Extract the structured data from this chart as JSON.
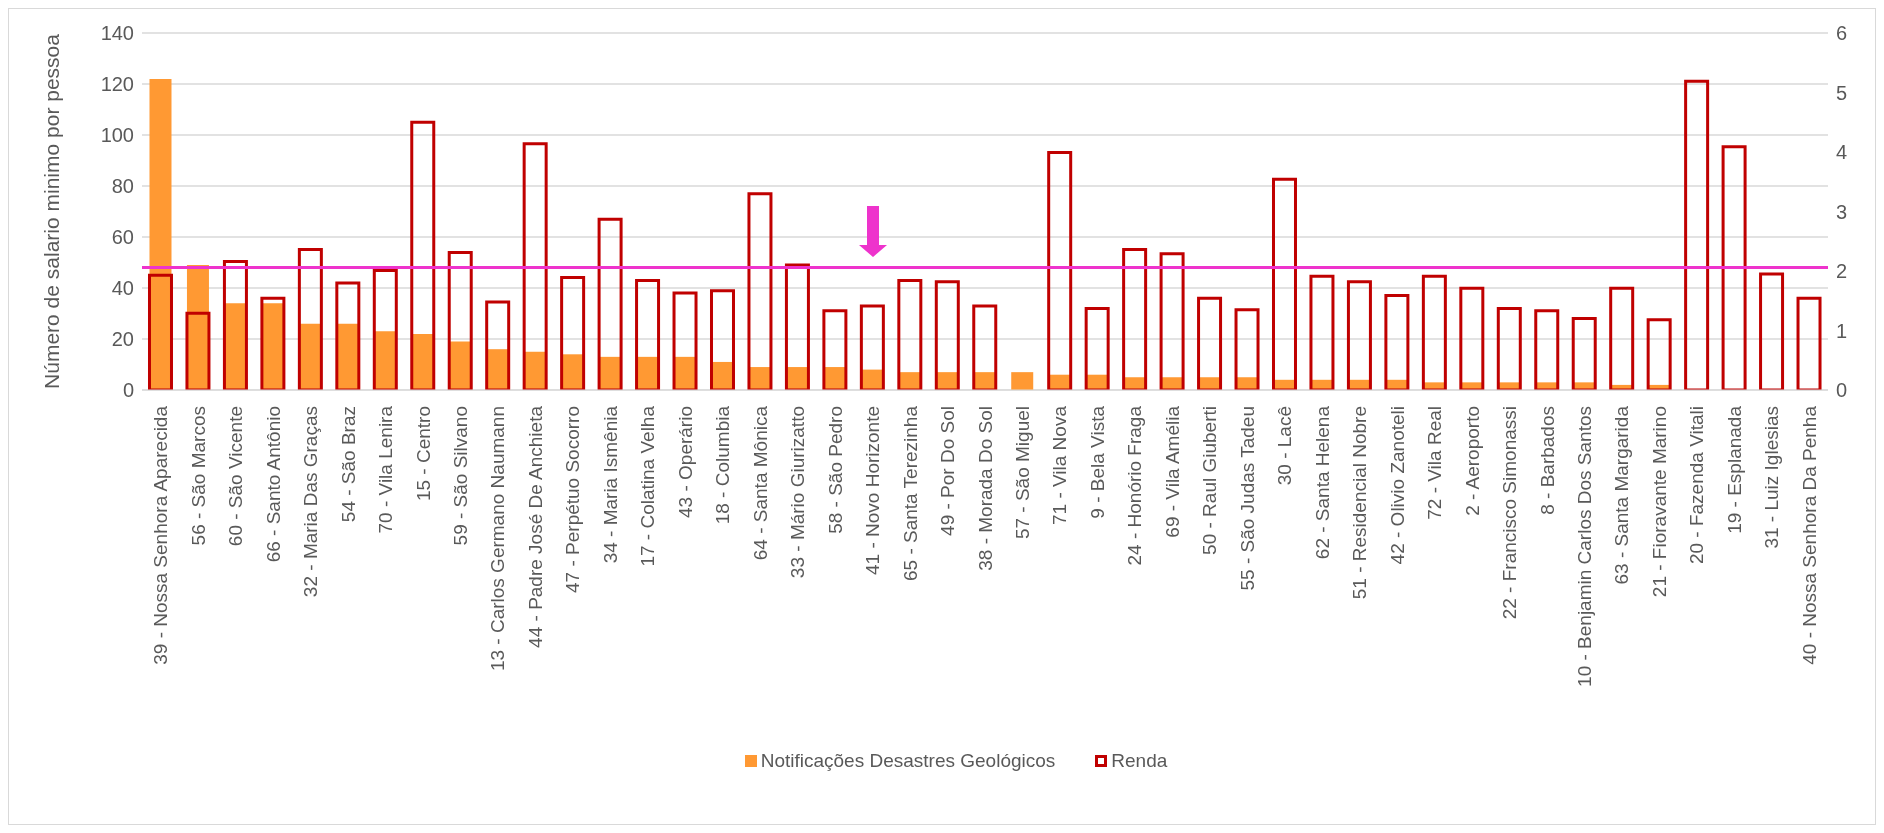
{
  "chart_data": {
    "type": "bar",
    "ylabel": "Número de salario minimo por pessoa",
    "categories": [
      "39 - Nossa Senhora Aparecida",
      "56 - São Marcos",
      "60 - São Vicente",
      "66 - Santo Antônio",
      "32 - Maria Das Graças",
      "54 - São Braz",
      "70 - Vila Lenira",
      "15 - Centro",
      "59 - São Silvano",
      "13 - Carlos Germano Naumann",
      "44 - Padre José De Anchieta",
      "47 - Perpétuo Socorro",
      "34 - Maria Ismênia",
      "17 - Colatina Velha",
      "43 - Operário",
      "18 - Columbia",
      "64 - Santa Mônica",
      "33 - Mário Giurizatto",
      "58 - São Pedro",
      "41 - Novo Horizonte",
      "65 - Santa Terezinha",
      "49 - Por Do Sol",
      "38 - Morada Do Sol",
      "57 - São Miguel",
      "71 - Vila Nova",
      "9 - Bela Vista",
      "24 - Honório Fraga",
      "69 - Vila Amélia",
      "50 - Raul Giuberti",
      "55 - São Judas Tadeu",
      "30 - Lacê",
      "62 - Santa Helena",
      "51 - Residencial Nobre",
      "42 - Olivio Zanoteli",
      "72 - Vila Real",
      "2 - Aeroporto",
      "22 -  Francisco Simonassi",
      "8 - Barbados",
      "10 - Benjamin Carlos Dos Santos",
      "63 - Santa Margarida",
      "21 - Fioravante Marino",
      "20 - Fazenda Vitali",
      "19 - Esplanada",
      "31 - Luiz Iglesias",
      "40 - Nossa Senhora Da Penha"
    ],
    "series": [
      {
        "name": "Notificações Desastres Geológicos",
        "color": "#ff9933",
        "axis": "y",
        "values": [
          122,
          49,
          34,
          34,
          26,
          26,
          23,
          22,
          19,
          16,
          15,
          14,
          13,
          13,
          13,
          11,
          9,
          9,
          9,
          8,
          7,
          7,
          7,
          7,
          6,
          6,
          5,
          5,
          5,
          5,
          4,
          4,
          4,
          4,
          3,
          3,
          3,
          3,
          3,
          2,
          2,
          0,
          0,
          0,
          0
        ]
      },
      {
        "name": "Renda",
        "color": "#c00000",
        "axis": "y2",
        "values": [
          1.93,
          1.29,
          2.16,
          1.54,
          2.36,
          1.8,
          2.01,
          4.5,
          2.31,
          1.48,
          4.14,
          1.89,
          2.87,
          1.84,
          1.63,
          1.67,
          3.3,
          2.1,
          1.33,
          1.41,
          1.84,
          1.82,
          1.41,
          null,
          3.99,
          1.37,
          2.36,
          2.29,
          1.54,
          1.35,
          3.54,
          1.91,
          1.82,
          1.59,
          1.91,
          1.71,
          1.37,
          1.33,
          1.2,
          1.71,
          1.18,
          5.19,
          4.09,
          1.95,
          1.54
        ]
      }
    ],
    "ylim": [
      0,
      140
    ],
    "yticks": [
      0,
      20,
      40,
      60,
      80,
      100,
      120,
      140
    ],
    "y2lim": [
      0,
      6
    ],
    "y2ticks": [
      0,
      1,
      2,
      3,
      4,
      5,
      6
    ],
    "ref_lines": [
      {
        "axis": "y",
        "value": 48,
        "color": "#ee33cc"
      }
    ],
    "grid": "y",
    "legend": "bottom"
  }
}
